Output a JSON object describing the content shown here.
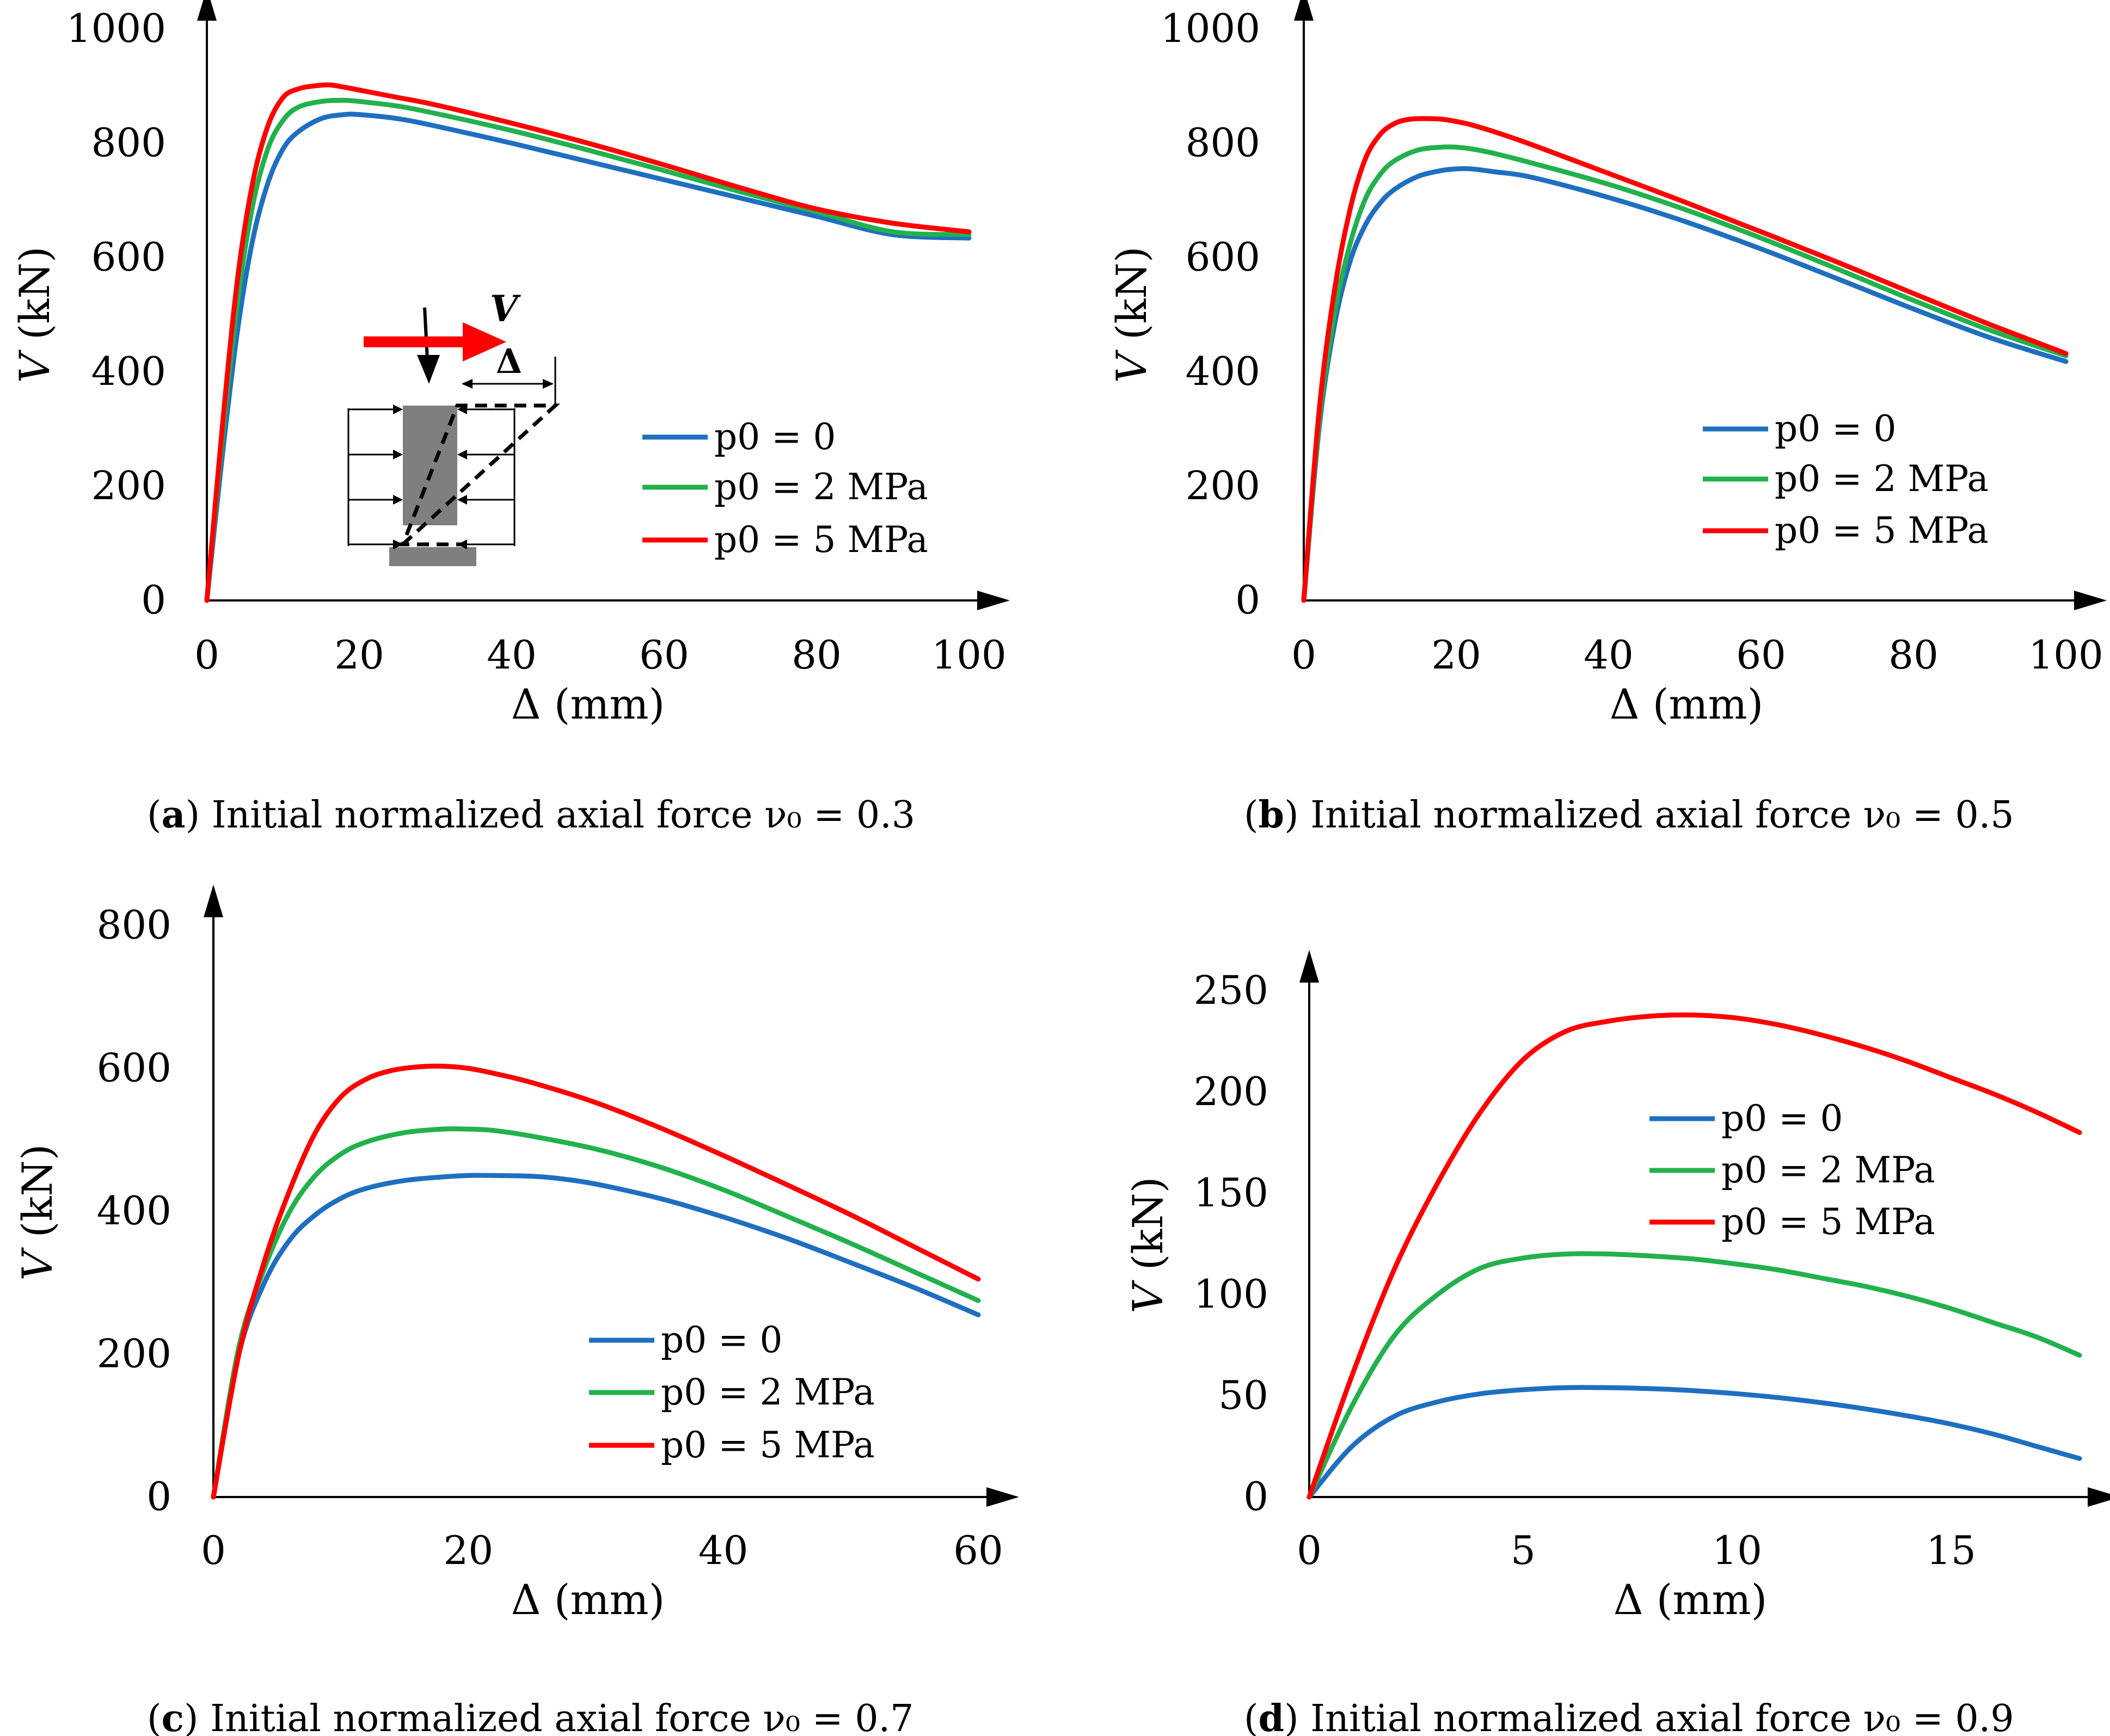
{
  "figure": {
    "colors": {
      "p0_0": "#1f6fc0",
      "p0_2": "#22b14c",
      "p0_5": "#ff0000",
      "axis": "#000000"
    }
  },
  "chart_data": [
    {
      "id": "a",
      "type": "line",
      "caption_letter": "a",
      "caption_text": "Initial normalized axial force ν₀ = 0.3",
      "xlabel_symbol": "Δ",
      "xlabel_unit": "(mm)",
      "ylabel_symbol": "V",
      "ylabel_unit": "(kN)",
      "xlim": [
        0,
        100
      ],
      "ylim": [
        0,
        1000
      ],
      "xticks": [
        0,
        20,
        40,
        60,
        80,
        100
      ],
      "yticks": [
        0,
        200,
        400,
        600,
        800,
        1000
      ],
      "legend_position": "center-right",
      "inset": {
        "force_label": "V",
        "displacement_label": "Δ"
      },
      "series": [
        {
          "name": "p0 = 0",
          "color_key": "p0_0",
          "x": [
            0,
            2,
            4,
            6,
            8,
            10,
            12,
            15,
            18,
            20,
            25,
            30,
            40,
            50,
            60,
            70,
            80,
            90,
            100
          ],
          "y": [
            0,
            250,
            470,
            630,
            730,
            790,
            820,
            843,
            850,
            850,
            843,
            830,
            800,
            768,
            736,
            704,
            672,
            640,
            634
          ]
        },
        {
          "name": "p0 = 2 MPa",
          "color_key": "p0_2",
          "x": [
            0,
            2,
            4,
            6,
            8,
            10,
            12,
            15,
            18,
            20,
            25,
            30,
            40,
            50,
            60,
            70,
            80,
            90,
            100
          ],
          "y": [
            0,
            280,
            520,
            690,
            790,
            840,
            863,
            873,
            875,
            873,
            865,
            852,
            822,
            788,
            752,
            715,
            680,
            645,
            640
          ]
        },
        {
          "name": "p0 = 5 MPa",
          "color_key": "p0_5",
          "x": [
            0,
            2,
            4,
            6,
            8,
            10,
            12,
            14,
            16,
            18,
            20,
            25,
            30,
            40,
            50,
            60,
            70,
            80,
            90,
            100
          ],
          "y": [
            0,
            300,
            560,
            730,
            830,
            880,
            895,
            900,
            902,
            898,
            893,
            880,
            867,
            835,
            800,
            762,
            722,
            685,
            660,
            645
          ]
        }
      ]
    },
    {
      "id": "b",
      "type": "line",
      "caption_letter": "b",
      "caption_text": "Initial normalized axial force ν₀ = 0.5",
      "xlabel_symbol": "Δ",
      "xlabel_unit": "(mm)",
      "ylabel_symbol": "V",
      "ylabel_unit": "(kN)",
      "xlim": [
        0,
        100
      ],
      "ylim": [
        0,
        1000
      ],
      "xticks": [
        0,
        20,
        40,
        60,
        80,
        100
      ],
      "yticks": [
        0,
        200,
        400,
        600,
        800,
        1000
      ],
      "legend_position": "center-right",
      "series": [
        {
          "name": "p0 = 0",
          "color_key": "p0_0",
          "x": [
            0,
            2,
            4,
            6,
            8,
            10,
            12,
            15,
            18,
            20,
            22,
            25,
            30,
            40,
            50,
            60,
            70,
            80,
            90,
            100
          ],
          "y": [
            0,
            300,
            480,
            590,
            655,
            695,
            720,
            742,
            752,
            755,
            755,
            750,
            740,
            705,
            663,
            615,
            563,
            510,
            460,
            418
          ]
        },
        {
          "name": "p0 = 2 MPa",
          "color_key": "p0_2",
          "x": [
            0,
            2,
            4,
            6,
            8,
            10,
            12,
            15,
            18,
            20,
            22,
            25,
            30,
            40,
            50,
            60,
            70,
            80,
            90,
            100
          ],
          "y": [
            0,
            310,
            500,
            620,
            700,
            745,
            770,
            788,
            793,
            793,
            790,
            782,
            765,
            728,
            684,
            634,
            580,
            525,
            473,
            428
          ]
        },
        {
          "name": "p0 = 5 MPa",
          "color_key": "p0_5",
          "x": [
            0,
            2,
            4,
            6,
            8,
            10,
            12,
            14,
            16,
            18,
            20,
            22,
            25,
            30,
            40,
            50,
            60,
            70,
            80,
            90,
            100
          ],
          "y": [
            0,
            330,
            540,
            680,
            770,
            815,
            835,
            842,
            843,
            842,
            838,
            832,
            820,
            797,
            747,
            697,
            645,
            592,
            537,
            483,
            432
          ]
        }
      ]
    },
    {
      "id": "c",
      "type": "line",
      "caption_letter": "c",
      "caption_text": "Initial normalized axial force ν₀ = 0.7",
      "xlabel_symbol": "Δ",
      "xlabel_unit": "(mm)",
      "ylabel_symbol": "V",
      "ylabel_unit": "(kN)",
      "xlim": [
        0,
        60
      ],
      "ylim": [
        0,
        800
      ],
      "xticks": [
        0,
        20,
        40,
        60
      ],
      "yticks": [
        0,
        200,
        400,
        600,
        800
      ],
      "legend_position": "bottom-right",
      "series": [
        {
          "name": "p0 = 0",
          "color_key": "p0_0",
          "x": [
            0,
            2,
            4,
            6,
            8,
            10,
            12,
            15,
            18,
            20,
            22,
            25,
            27,
            30,
            35,
            40,
            45,
            50,
            55,
            60
          ],
          "y": [
            0,
            200,
            300,
            360,
            395,
            418,
            432,
            443,
            448,
            450,
            450,
            449,
            446,
            438,
            418,
            392,
            362,
            328,
            293,
            255
          ]
        },
        {
          "name": "p0 = 2 MPa",
          "color_key": "p0_2",
          "x": [
            0,
            2,
            4,
            6,
            8,
            10,
            12,
            15,
            18,
            20,
            22,
            25,
            30,
            35,
            40,
            45,
            50,
            55,
            60
          ],
          "y": [
            0,
            210,
            320,
            400,
            450,
            480,
            497,
            510,
            515,
            515,
            513,
            505,
            487,
            462,
            430,
            393,
            355,
            315,
            275
          ]
        },
        {
          "name": "p0 = 5 MPa",
          "color_key": "p0_5",
          "x": [
            0,
            2,
            4,
            6,
            8,
            10,
            12,
            14,
            16,
            18,
            20,
            22,
            25,
            30,
            35,
            40,
            45,
            50,
            55,
            60
          ],
          "y": [
            0,
            200,
            330,
            430,
            510,
            560,
            585,
            597,
            602,
            603,
            600,
            593,
            580,
            552,
            517,
            478,
            437,
            395,
            350,
            305
          ]
        }
      ]
    },
    {
      "id": "d",
      "type": "line",
      "caption_letter": "d",
      "caption_text": "Initial normalized axial force ν₀ = 0.9",
      "xlabel_symbol": "Δ",
      "xlabel_unit": "(mm)",
      "ylabel_symbol": "V",
      "ylabel_unit": "(kN)",
      "xlim": [
        0,
        18
      ],
      "ylim": [
        0,
        250
      ],
      "xticks": [
        0,
        5,
        10,
        15
      ],
      "yticks": [
        0,
        50,
        100,
        150,
        200,
        250
      ],
      "legend_position": "top-center",
      "series": [
        {
          "name": "p0 = 0",
          "color_key": "p0_0",
          "x": [
            0,
            1,
            2,
            3,
            4,
            5,
            6,
            7,
            8,
            9,
            10,
            11,
            12,
            13,
            14,
            15,
            16,
            17,
            18
          ],
          "y": [
            0,
            25,
            40,
            47,
            51,
            53,
            54,
            54,
            53.5,
            52.5,
            51,
            49,
            46.5,
            43.5,
            40,
            36,
            31,
            25,
            19
          ]
        },
        {
          "name": "p0 = 2 MPa",
          "color_key": "p0_2",
          "x": [
            0,
            1,
            2,
            3,
            4,
            5,
            6,
            7,
            8,
            9,
            10,
            11,
            12,
            13,
            14,
            15,
            16,
            17,
            18
          ],
          "y": [
            0,
            45,
            80,
            100,
            113,
            118,
            120,
            120,
            119,
            117.5,
            115,
            112,
            108,
            104,
            99,
            93,
            86,
            79,
            70
          ]
        },
        {
          "name": "p0 = 5 MPa",
          "color_key": "p0_5",
          "x": [
            0,
            1,
            2,
            3,
            4,
            5,
            6,
            7,
            8,
            9,
            10,
            11,
            12,
            13,
            14,
            15,
            16,
            17,
            18
          ],
          "y": [
            0,
            60,
            113,
            155,
            190,
            216,
            230,
            235,
            237.5,
            238,
            236.5,
            233,
            228,
            222,
            215,
            207,
            199,
            190,
            180
          ]
        }
      ]
    }
  ]
}
